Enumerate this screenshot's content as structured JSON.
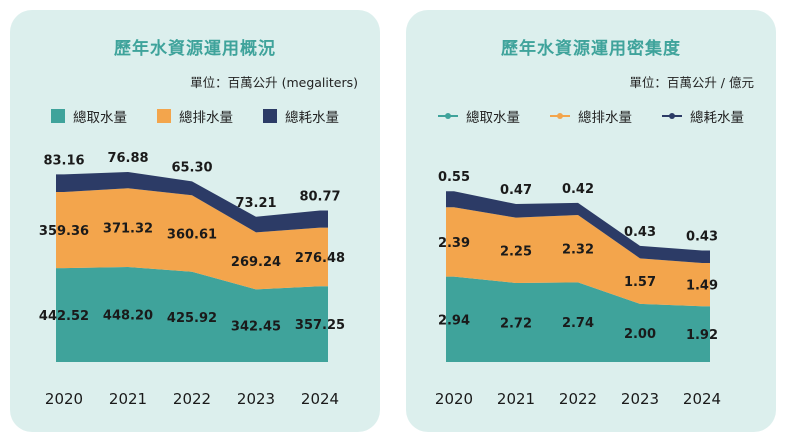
{
  "colors": {
    "panel_bg": "#dcefed",
    "title": "#3fa39b",
    "teal": "#3fa39b",
    "orange": "#f3a54c",
    "navy": "#2c3b66"
  },
  "left": {
    "title": "歷年水資源運用概況",
    "unit": "單位：百萬公升 (megaliters)",
    "legend": [
      {
        "label": "總取水量",
        "color": "#3fa39b"
      },
      {
        "label": "總排水量",
        "color": "#f3a54c"
      },
      {
        "label": "總耗水量",
        "color": "#2c3b66"
      }
    ]
  },
  "right": {
    "title": "歷年水資源運用密集度",
    "unit": "單位：百萬公升 / 億元",
    "legend": [
      {
        "label": "總取水量",
        "color": "#3fa39b"
      },
      {
        "label": "總排水量",
        "color": "#f3a54c"
      },
      {
        "label": "總耗水量",
        "color": "#2c3b66"
      }
    ]
  },
  "chart_data": [
    {
      "type": "area",
      "stacked": true,
      "title": "歷年水資源運用概況",
      "categories": [
        "2020",
        "2021",
        "2022",
        "2023",
        "2024"
      ],
      "series": [
        {
          "name": "總取水量",
          "values": [
            442.52,
            448.2,
            425.92,
            342.45,
            357.25
          ],
          "labels": [
            "442.52",
            "448.20",
            "425.92",
            "342.45",
            "357.25"
          ],
          "color": "#3fa39b"
        },
        {
          "name": "總排水量",
          "values": [
            359.36,
            371.32,
            360.61,
            269.24,
            276.48
          ],
          "labels": [
            "359.36",
            "371.32",
            "360.61",
            "269.24",
            "276.48"
          ],
          "color": "#f3a54c"
        },
        {
          "name": "總耗水量",
          "values": [
            83.16,
            76.88,
            65.3,
            73.21,
            80.77
          ],
          "labels": [
            "83.16",
            "76.88",
            "65.30",
            "73.21",
            "80.77"
          ],
          "color": "#2c3b66"
        }
      ],
      "ylim": [
        0,
        1000
      ],
      "legend": "top",
      "grid": false
    },
    {
      "type": "area",
      "stacked": true,
      "title": "歷年水資源運用密集度",
      "categories": [
        "2020",
        "2021",
        "2022",
        "2023",
        "2024"
      ],
      "series": [
        {
          "name": "總取水量",
          "values": [
            2.94,
            2.72,
            2.74,
            2.0,
            1.92
          ],
          "labels": [
            "2.94",
            "2.72",
            "2.74",
            "2.00",
            "1.92"
          ],
          "color": "#3fa39b"
        },
        {
          "name": "總排水量",
          "values": [
            2.39,
            2.25,
            2.32,
            1.57,
            1.49
          ],
          "labels": [
            "2.39",
            "2.25",
            "2.32",
            "1.57",
            "1.49"
          ],
          "color": "#f3a54c"
        },
        {
          "name": "總耗水量",
          "values": [
            0.55,
            0.47,
            0.42,
            0.43,
            0.43
          ],
          "labels": [
            "0.55",
            "0.47",
            "0.42",
            "0.43",
            "0.43"
          ],
          "color": "#2c3b66"
        }
      ],
      "ylim": [
        0,
        7.3
      ],
      "legend": "top",
      "grid": false
    }
  ]
}
